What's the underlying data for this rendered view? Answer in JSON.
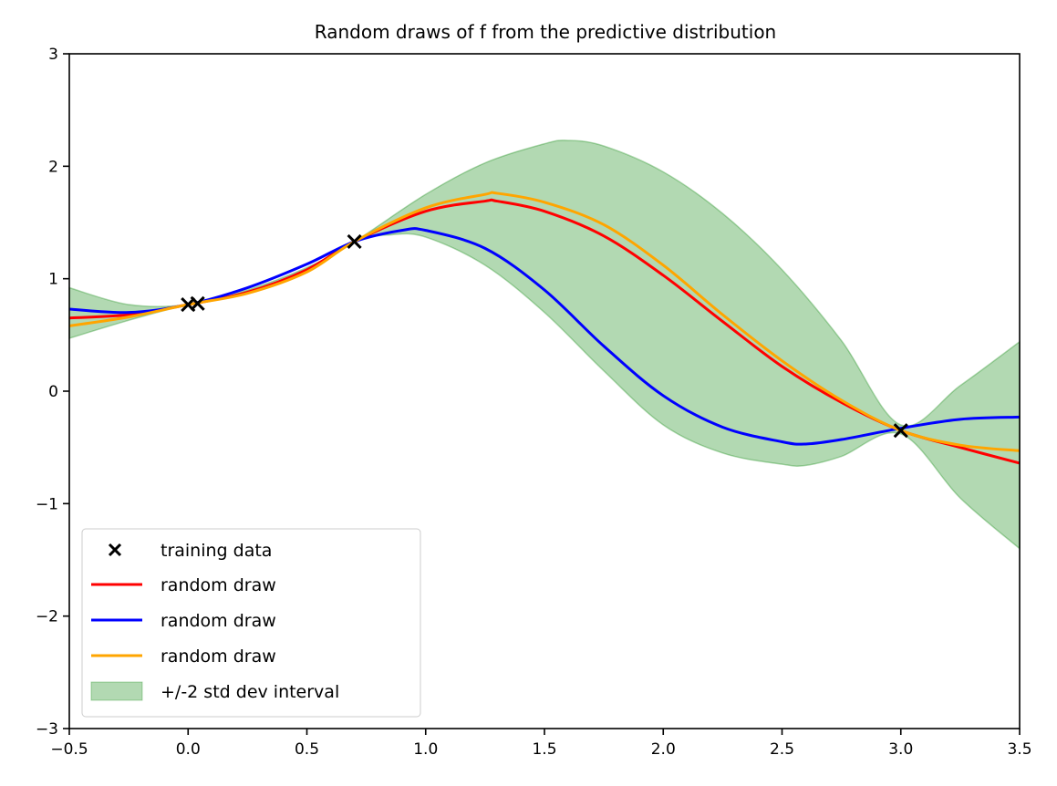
{
  "chart_data": {
    "type": "line",
    "title": "Random draws of f from the predictive distribution",
    "xlabel": "",
    "ylabel": "",
    "xlim": [
      -0.5,
      3.5
    ],
    "ylim": [
      -3,
      3
    ],
    "grid": false,
    "x_ticks": [
      -0.5,
      0.0,
      0.5,
      1.0,
      1.5,
      2.0,
      2.5,
      3.0,
      3.5
    ],
    "x_tick_labels": [
      "−0.5",
      "0.0",
      "0.5",
      "1.0",
      "1.5",
      "2.0",
      "2.5",
      "3.0",
      "3.5"
    ],
    "y_ticks": [
      -3,
      -2,
      -1,
      0,
      1,
      2,
      3
    ],
    "y_tick_labels": [
      "−3",
      "−2",
      "−1",
      "0",
      "1",
      "2",
      "3"
    ],
    "legend_placement": "lower-left",
    "training_data": {
      "name": "training data",
      "x": [
        0.0,
        0.04,
        0.7,
        3.0
      ],
      "y": [
        0.77,
        0.78,
        1.33,
        -0.35
      ],
      "color": "#000000"
    },
    "band": {
      "name": "+/-2 std dev interval",
      "color": "#008000",
      "upper": {
        "x": [
          -0.5,
          -0.25,
          0,
          0.25,
          0.5,
          0.7,
          1.0,
          1.25,
          1.5,
          1.6,
          1.75,
          2.0,
          2.25,
          2.5,
          2.75,
          3.0,
          3.25,
          3.5
        ],
        "y": [
          0.92,
          0.77,
          0.77,
          0.9,
          1.1,
          1.33,
          1.75,
          2.03,
          2.2,
          2.23,
          2.18,
          1.95,
          1.58,
          1.08,
          0.45,
          -0.3,
          0.05,
          0.44
        ]
      },
      "lower": {
        "x": [
          -0.5,
          -0.25,
          0,
          0.25,
          0.5,
          0.7,
          0.85,
          1.0,
          1.25,
          1.5,
          1.75,
          2.0,
          2.25,
          2.5,
          2.6,
          2.75,
          3.0,
          3.25,
          3.5
        ],
        "y": [
          0.47,
          0.63,
          0.77,
          0.88,
          1.07,
          1.33,
          1.39,
          1.37,
          1.12,
          0.7,
          0.18,
          -0.3,
          -0.55,
          -0.65,
          -0.66,
          -0.58,
          -0.38,
          -0.95,
          -1.4
        ]
      }
    },
    "series": [
      {
        "name": "random draw",
        "color": "#ff0000",
        "x": [
          -0.5,
          -0.25,
          0,
          0.25,
          0.5,
          0.7,
          1.0,
          1.25,
          1.3,
          1.5,
          1.75,
          2.0,
          2.25,
          2.5,
          2.75,
          3.0,
          3.25,
          3.5
        ],
        "y": [
          0.65,
          0.68,
          0.77,
          0.88,
          1.08,
          1.33,
          1.6,
          1.69,
          1.69,
          1.6,
          1.38,
          1.03,
          0.62,
          0.22,
          -0.1,
          -0.35,
          -0.5,
          -0.64
        ]
      },
      {
        "name": "random draw",
        "color": "#0000ff",
        "x": [
          -0.5,
          -0.25,
          0,
          0.25,
          0.5,
          0.7,
          0.9,
          1.0,
          1.25,
          1.5,
          1.75,
          2.0,
          2.25,
          2.5,
          2.6,
          2.75,
          3.0,
          3.25,
          3.5
        ],
        "y": [
          0.73,
          0.7,
          0.77,
          0.92,
          1.13,
          1.33,
          1.43,
          1.43,
          1.27,
          0.9,
          0.4,
          -0.04,
          -0.32,
          -0.45,
          -0.47,
          -0.43,
          -0.33,
          -0.25,
          -0.23
        ]
      },
      {
        "name": "random draw",
        "color": "#ffa500",
        "x": [
          -0.5,
          -0.25,
          0,
          0.25,
          0.5,
          0.7,
          1.0,
          1.25,
          1.3,
          1.5,
          1.75,
          2.0,
          2.25,
          2.5,
          2.75,
          3.0,
          3.25,
          3.5
        ],
        "y": [
          0.58,
          0.66,
          0.77,
          0.87,
          1.06,
          1.33,
          1.63,
          1.75,
          1.76,
          1.68,
          1.48,
          1.12,
          0.68,
          0.27,
          -0.08,
          -0.35,
          -0.48,
          -0.53
        ]
      }
    ]
  }
}
